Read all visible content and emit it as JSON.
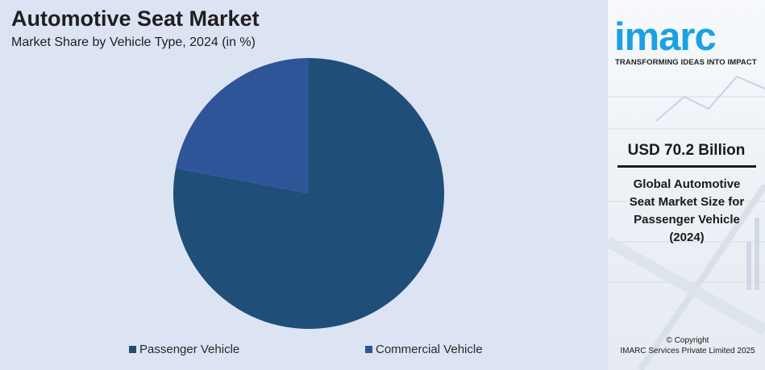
{
  "header": {
    "title": "Automotive Seat Market",
    "subtitle": "Market Share by Vehicle Type, 2024 (in %)"
  },
  "chart_data": {
    "type": "pie",
    "title": "Automotive Seat Market",
    "subtitle": "Market Share by Vehicle Type, 2024 (in %)",
    "categories": [
      "Passenger Vehicle",
      "Commercial Vehicle"
    ],
    "values": [
      78,
      22
    ],
    "colors": [
      "#1f4e79",
      "#2e5597"
    ],
    "legend_position": "bottom"
  },
  "sidebar": {
    "logo_text": "imarc",
    "tagline": "TRANSFORMING IDEAS INTO IMPACT",
    "stat_value": "USD 70.2 Billion",
    "stat_desc_lines": [
      "Global Automotive",
      "Seat Market Size for",
      "Passenger Vehicle",
      "(2024)"
    ],
    "copyright_line1": "© Copyright",
    "copyright_line2": "IMARC Services Private Limited 2025",
    "brand_color": "#1ba1e2"
  }
}
